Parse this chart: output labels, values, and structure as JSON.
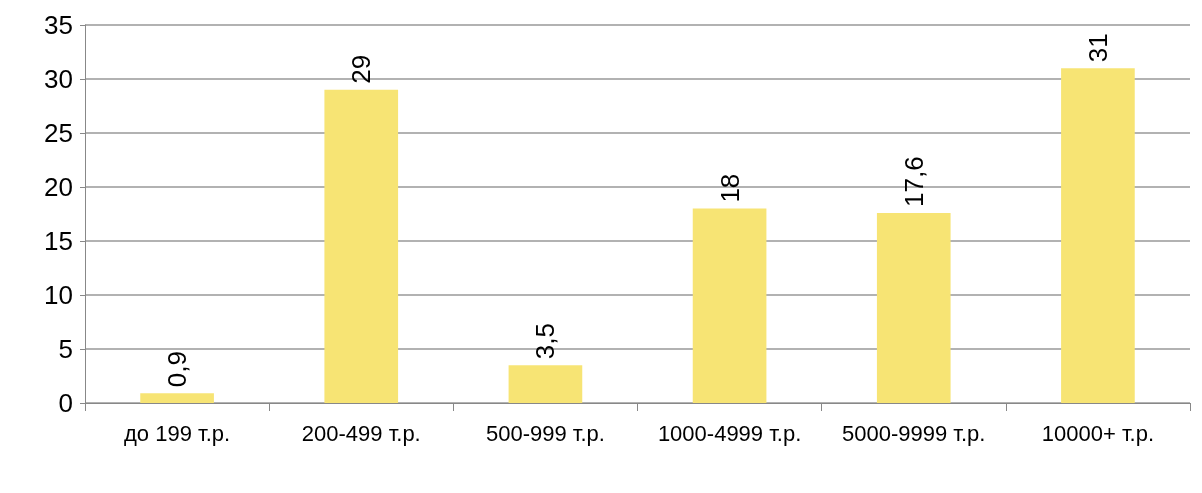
{
  "chart_data": {
    "type": "bar",
    "categories": [
      "до 199 т.р.",
      "200-499 т.р.",
      "500-999 т.р.",
      "1000-4999 т.р.",
      "5000-9999 т.р.",
      "10000+ т.р."
    ],
    "values": [
      0.9,
      29,
      3.5,
      18,
      17.6,
      31
    ],
    "value_labels": [
      "0,9",
      "29",
      "3,5",
      "18",
      "17,6",
      "31"
    ],
    "color": "#f7e474",
    "ylim": [
      0,
      35
    ],
    "yticks": [
      0,
      5,
      10,
      15,
      20,
      25,
      30,
      35
    ],
    "grid": "y"
  }
}
